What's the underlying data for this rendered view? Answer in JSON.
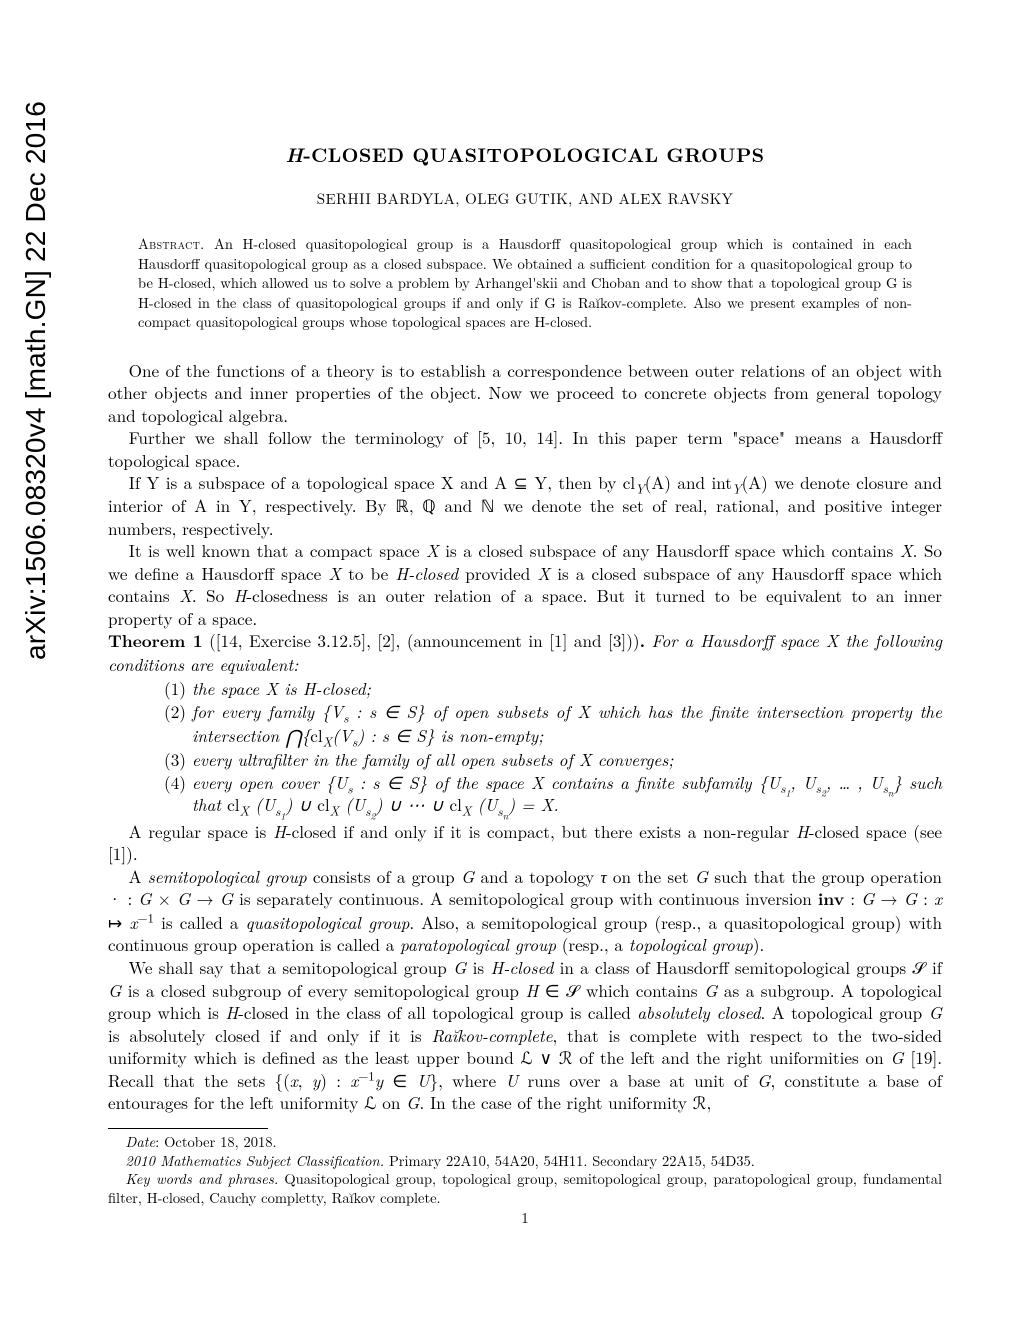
{
  "arxiv_sidebar": "arXiv:1506.08320v4  [math.GN]  22 Dec 2016",
  "title_pre": "H",
  "title_post": "-CLOSED QUASITOPOLOGICAL GROUPS",
  "authors": "SERHII BARDYLA, OLEG GUTIK, AND ALEX RAVSKY",
  "abstract_label": "Abstract.",
  "abstract_text": " An H-closed quasitopological group is a Hausdorff quasitopological group which is contained in each Hausdorff quasitopological group as a closed subspace. We obtained a sufficient condition for a quasitopological group to be H-closed, which allowed us to solve a problem by Arhangel'skii and Choban and to show that a topological group G is H-closed in the class of quasitopological groups if and only if G is Raĭkov-complete. Also we present examples of non-compact quasitopological groups whose topological spaces are H-closed.",
  "p1": "One of the functions of a theory is to establish a correspondence between outer relations of an object with other objects and inner properties of the object. Now we proceed to concrete objects from general topology and topological algebra.",
  "p2": "Further we shall follow the terminology of [5, 10, 14]. In this paper term \"space\" means a Hausdorff topological space.",
  "p3a": "If Y is a subspace of a topological space X and A ⊆ Y, then by cl",
  "p3b": "(A) and int",
  "p3c": "(A) we denote closure and interior of A in Y, respectively. By ℝ, ℚ and ℕ we denote the set of real, rational, and positive integer numbers, respectively.",
  "p4": "It is well known that a compact space X is a closed subspace of any Hausdorff space which contains X. So we define a Hausdorff space X to be H-closed provided X is a closed subspace of any Hausdorff space which contains X. So H-closedness is an outer relation of a space. But it turned to be equivalent to an inner property of a space.",
  "thm_head": "Theorem 1",
  "thm_ref": " ([14, Exercise 3.12.5], [2], (announcement in [1] and [3]))",
  "thm_intro": ". For a Hausdorff space X the following conditions are equivalent:",
  "it1": "the space X is H-closed;",
  "it2a": "for every family {V",
  "it2b": " : s ∈ S} of open subsets of X which has the finite intersection property the intersection ",
  "it2c": "{cl",
  "it2d": "(V",
  "it2e": ") : s ∈ S} is non-empty;",
  "it3": "every ultrafilter in the family of all open subsets of X converges;",
  "it4a": "every open cover {U",
  "it4b": " : s ∈ S} of the space X contains a finite subfamily {U",
  "it4c": ", U",
  "it4d": ", … , U",
  "it4e": "} such that cl",
  "it4f": " (U",
  "it4g": ") ∪ cl",
  "it4h": ") ∪ ⋯ ∪ cl",
  "it4i": ") = X.",
  "p5": "A regular space is H-closed if and only if it is compact, but there exists a non-regular H-closed space (see [1]).",
  "p6a": "A semitopological group consists of a group G and a topology τ on the set G such that the group operation · : G × G → G is separately continuous. A semitopological group with continuous inversion ",
  "p6bold": "inv",
  "p6b": " : G → G : x ↦ x",
  "p6c": " is called a quasitopological group. Also, a semitopological group (resp., a quasitopological group) with continuous group operation is called a paratopological group (resp., a topological group).",
  "p7a": "We shall say that a semitopological group G is H-closed in a class of Hausdorff semitopological groups 𝒮 if G is a closed subgroup of every semitopological group H ∈ 𝒮 which contains G as a subgroup. A topological group which is H-closed in the class of all topological group is called absolutely closed. A topological group G is absolutely closed if and only if it is Raĭkov-complete, that is complete with respect to the two-sided uniformity which is defined as the least upper bound ℒ ∨ ℛ of the left and the right uniformities on G [19]. Recall that the sets {(x, y) : x",
  "p7b": "y ∈ U}, where U runs over a base at unit of G, constitute a base of entourages for the left uniformity ℒ on G. In the case of the right uniformity ℛ,",
  "fn_date_lbl": "Date",
  "fn_date": ": October 18, 2018.",
  "fn_msc_lbl": "2010 Mathematics Subject Classification.",
  "fn_msc": " Primary 22A10, 54A20, 54H11. Secondary 22A15, 54D35.",
  "fn_kw_lbl": "Key words and phrases.",
  "fn_kw": " Quasitopological group, topological group, semitopological group, paratopological group, fundamental filter, H-closed, Cauchy completty, Raĭkov complete.",
  "pgnum": "1"
}
